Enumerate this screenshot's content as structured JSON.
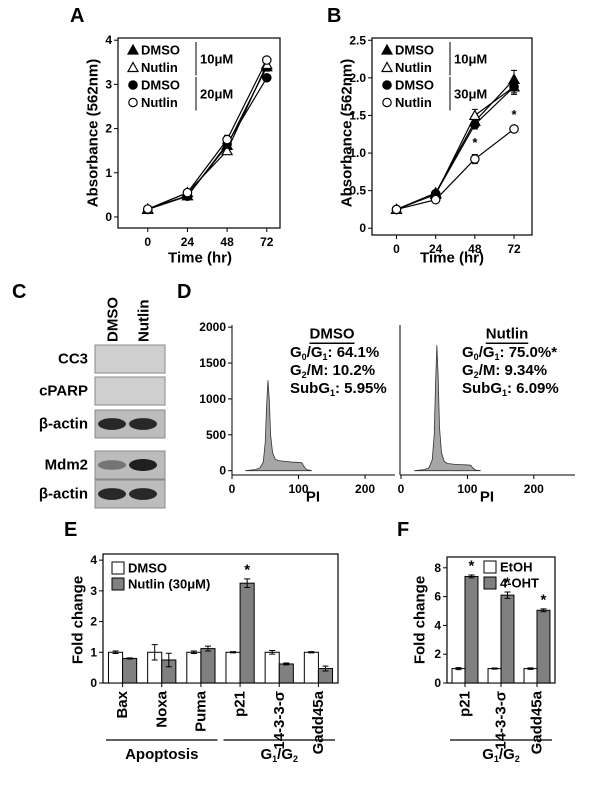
{
  "chart_data": [
    {
      "panel": "A",
      "type": "line",
      "xlabel": "Time (hr)",
      "ylabel": "Absorbance (562nm)",
      "x": [
        0,
        24,
        48,
        72
      ],
      "xlim": [
        -18,
        80
      ],
      "xticks": [
        0,
        24,
        48,
        72
      ],
      "ylim": [
        -0.25,
        4.05
      ],
      "yticks": [
        0,
        1,
        2,
        3,
        4
      ],
      "series_groups": [
        {
          "label": "10μM",
          "series": [
            {
              "name": "DMSO",
              "marker": "triangle",
              "fill": "#000000",
              "values": [
                0.18,
                0.48,
                1.62,
                3.4
              ],
              "errors": [
                0.02,
                0.03,
                0.08,
                0.1
              ]
            },
            {
              "name": "Nutlin",
              "marker": "triangle",
              "fill": "#ffffff",
              "values": [
                0.17,
                0.55,
                1.5,
                3.45
              ],
              "errors": [
                0.02,
                0.03,
                0.07,
                0.1
              ]
            }
          ]
        },
        {
          "label": "20μM",
          "series": [
            {
              "name": "DMSO",
              "marker": "circle",
              "fill": "#000000",
              "values": [
                0.17,
                0.47,
                1.65,
                3.15
              ],
              "errors": [
                0.02,
                0.03,
                0.08,
                0.06
              ]
            },
            {
              "name": "Nutlin",
              "marker": "circle",
              "fill": "#ffffff",
              "values": [
                0.18,
                0.55,
                1.75,
                3.55
              ],
              "errors": [
                0.02,
                0.03,
                0.1,
                0.07
              ]
            }
          ]
        }
      ]
    },
    {
      "panel": "B",
      "type": "line",
      "xlabel": "Time (hr)",
      "ylabel": "Absorbance (562nm)",
      "x": [
        0,
        24,
        48,
        72
      ],
      "xlim": [
        -15,
        83
      ],
      "xticks": [
        0,
        24,
        48,
        72
      ],
      "ylim": [
        -0.09,
        2.53
      ],
      "yticks": [
        0,
        0.5,
        {
          "value": 1,
          "label": "1.0"
        },
        1.5,
        {
          "value": 2,
          "label": "2.0"
        },
        2.5
      ],
      "series_groups": [
        {
          "label": "10μM",
          "series": [
            {
              "name": "DMSO",
              "marker": "triangle",
              "fill": "#000000",
              "values": [
                0.25,
                0.47,
                1.42,
                1.98
              ],
              "errors": [
                0.02,
                0.02,
                0.07,
                0.12
              ]
            },
            {
              "name": "Nutlin",
              "marker": "triangle",
              "fill": "#ffffff",
              "values": [
                0.25,
                0.45,
                1.5,
                1.88
              ],
              "errors": [
                0.02,
                0.02,
                0.08,
                0.1
              ]
            }
          ]
        },
        {
          "label": "30μM",
          "series": [
            {
              "name": "DMSO",
              "marker": "circle",
              "fill": "#000000",
              "values": [
                0.25,
                0.46,
                1.38,
                1.88
              ],
              "errors": [
                0.02,
                0.02,
                0.06,
                0.08
              ]
            },
            {
              "name": "Nutlin",
              "marker": "circle",
              "fill": "#ffffff",
              "values": [
                0.25,
                0.38,
                0.92,
                1.32
              ],
              "errors": [
                0.02,
                0.02,
                0.06,
                0.03
              ],
              "annotations": [
                null,
                null,
                "*",
                "*"
              ]
            }
          ]
        }
      ]
    },
    {
      "panel": "C",
      "type": "blot",
      "columns": [
        "DMSO",
        "Nutlin"
      ],
      "rows": [
        "CC3",
        "cPARP",
        "β-actin",
        "Mdm2",
        "β-actin"
      ]
    },
    {
      "panel": "D",
      "type": "area",
      "xlabel": "PI",
      "color": "#a6a6a6",
      "x": [
        20,
        35,
        42,
        47,
        50,
        52,
        54,
        56,
        58,
        61,
        65,
        70,
        80,
        90,
        100,
        105,
        108,
        112,
        120
      ],
      "values": [
        0,
        15,
        40,
        120,
        400,
        900,
        1260,
        1000,
        500,
        250,
        160,
        140,
        130,
        120,
        115,
        110,
        60,
        15,
        0
      ],
      "xlim": [
        0,
        245
      ],
      "xticks": [
        0,
        100,
        200
      ],
      "ylim": [
        -60,
        2030
      ],
      "yticks": [
        0,
        500,
        1000,
        1500,
        2000
      ],
      "label": "DMSO",
      "stats": [
        [
          {
            "text": "G"
          },
          {
            "sub": "0"
          },
          {
            "text": "/G"
          },
          {
            "sub": "1"
          },
          {
            "text": ": 64.1%"
          }
        ],
        [
          {
            "text": "G"
          },
          {
            "sub": "2"
          },
          {
            "text": "/M: 10.2%"
          }
        ],
        [
          {
            "text": "SubG"
          },
          {
            "sub": "1"
          },
          {
            "text": ": 5.95%"
          }
        ]
      ]
    },
    {
      "type": "area",
      "xlabel": "PI",
      "color": "#a6a6a6",
      "x": [
        20,
        35,
        42,
        47,
        50,
        52,
        54,
        56,
        58,
        61,
        65,
        70,
        80,
        90,
        100,
        105,
        108,
        112,
        120
      ],
      "values": [
        0,
        15,
        40,
        150,
        500,
        1200,
        1750,
        1300,
        600,
        250,
        130,
        100,
        90,
        85,
        80,
        75,
        40,
        10,
        0
      ],
      "xlim": [
        -1.5,
        262
      ],
      "xticks": [
        0,
        100,
        200
      ],
      "ylim": [
        -60,
        2030
      ],
      "label": "Nutlin",
      "stats": [
        [
          {
            "text": "G"
          },
          {
            "sub": "0"
          },
          {
            "text": "/G"
          },
          {
            "sub": "1"
          },
          {
            "text": ": 75.0%*"
          }
        ],
        [
          {
            "text": "G"
          },
          {
            "sub": "2"
          },
          {
            "text": "/M: 9.34%"
          }
        ],
        [
          {
            "text": "SubG"
          },
          {
            "sub": "1"
          },
          {
            "text": ": 6.09%"
          }
        ]
      ]
    },
    {
      "panel": "E",
      "type": "bar",
      "ylabel": "Fold change",
      "ylim": [
        0,
        4.2
      ],
      "yticks": [
        0,
        1,
        2,
        3,
        4
      ],
      "category_groups": [
        {
          "label": [
            {
              "text": "Apoptosis"
            }
          ],
          "categories": [
            "Bax",
            "Noxa",
            "Puma"
          ]
        },
        {
          "label": [
            {
              "text": "G"
            },
            {
              "sub": "1"
            },
            {
              "text": "/G"
            },
            {
              "sub": "2"
            }
          ],
          "categories": [
            "p21",
            "14-3-3-σ",
            "Gadd45a"
          ]
        }
      ],
      "series": [
        {
          "name": "DMSO",
          "color": "#ffffff",
          "values": [
            1,
            1,
            1,
            1,
            1,
            1
          ],
          "errors": [
            0.04,
            0.25,
            0.04,
            0.02,
            0.06,
            0.02
          ]
        },
        {
          "name": "Nutlin (30μM)",
          "color": "#808080",
          "values": [
            0.8,
            0.75,
            1.12,
            3.25,
            0.62,
            0.47
          ],
          "errors": [
            0.02,
            0.22,
            0.08,
            0.14,
            0.03,
            0.08
          ],
          "annotations": [
            null,
            null,
            null,
            "*",
            null,
            null
          ]
        }
      ]
    },
    {
      "panel": "F",
      "type": "bar",
      "ylabel": "Fold change",
      "ylim": [
        0,
        8.75
      ],
      "yticks": [
        0,
        2,
        4,
        6,
        8
      ],
      "category_groups": [
        {
          "label": [
            {
              "text": "G"
            },
            {
              "sub": "1"
            },
            {
              "text": "/G"
            },
            {
              "sub": "2"
            }
          ],
          "categories": [
            "p21",
            "14-3-3-σ",
            "Gadd45a"
          ]
        }
      ],
      "series": [
        {
          "name": "EtOH",
          "color": "#ffffff",
          "values": [
            1,
            1,
            1
          ],
          "errors": [
            0.07,
            0.04,
            0.05
          ]
        },
        {
          "name": "4-OHT",
          "color": "#808080",
          "values": [
            7.4,
            6.1,
            5.05
          ],
          "errors": [
            0.1,
            0.22,
            0.1
          ],
          "annotations": [
            "*",
            "*",
            "*"
          ]
        }
      ]
    }
  ]
}
